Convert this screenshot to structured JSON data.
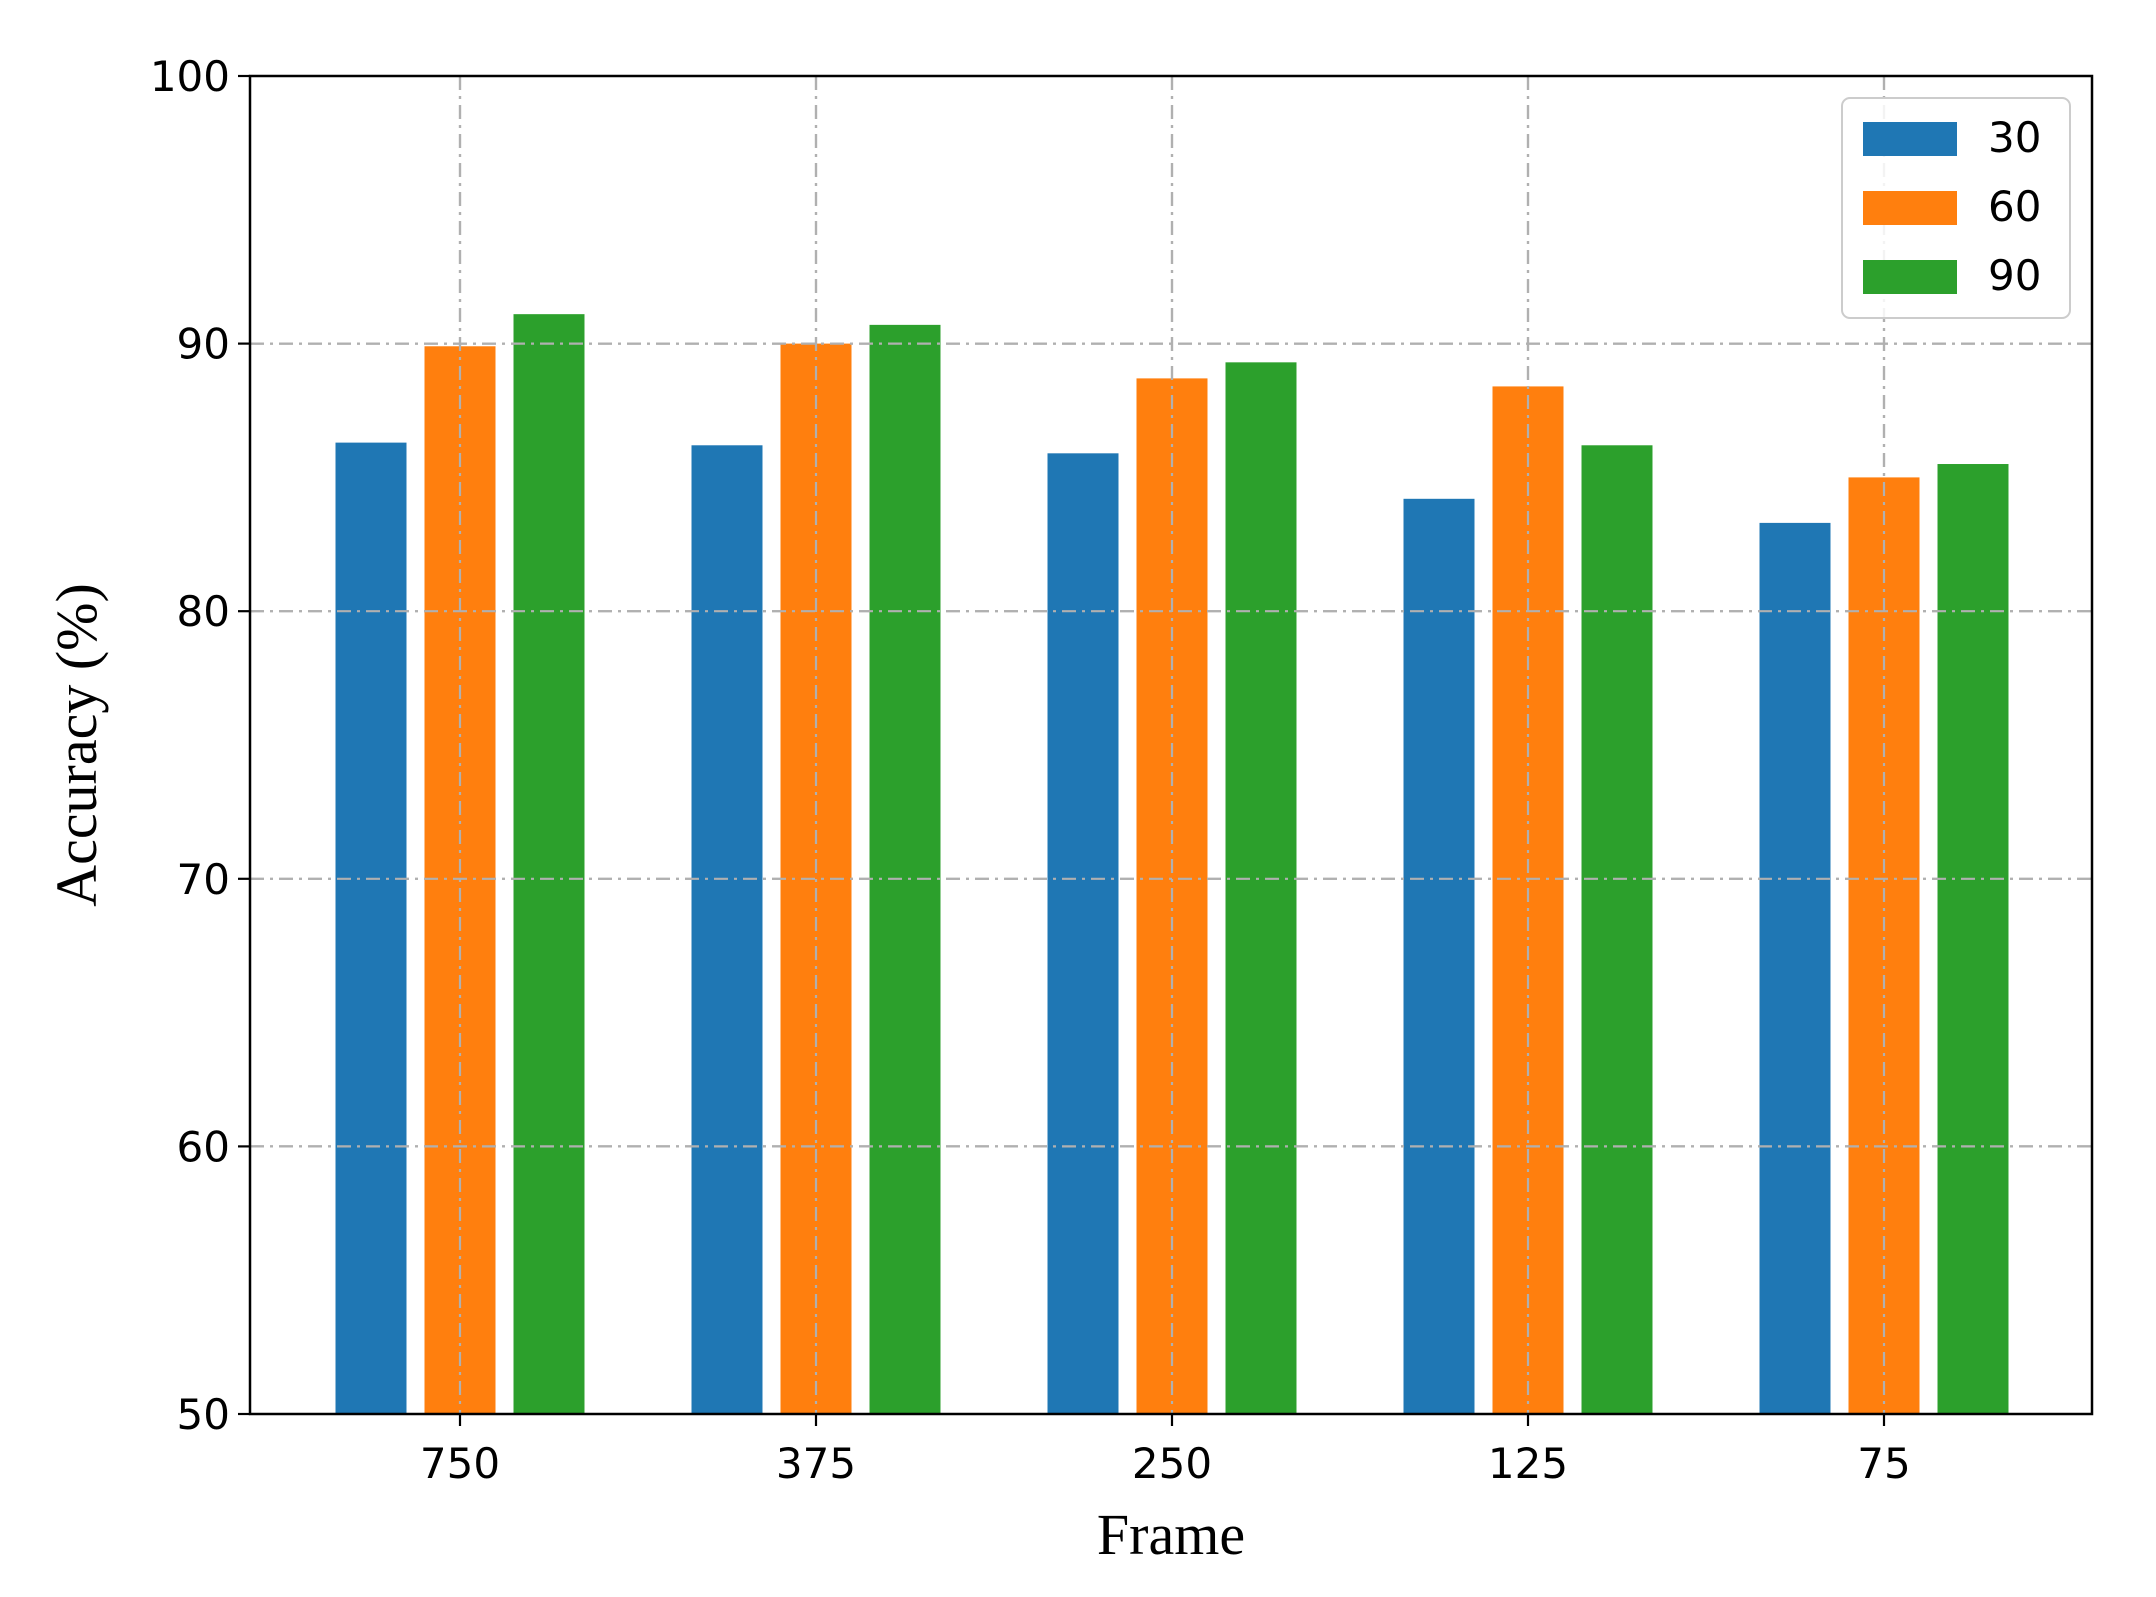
{
  "chart_data": {
    "type": "bar",
    "title": "",
    "xlabel": "Frame",
    "ylabel": "Accuracy (%)",
    "categories": [
      "750",
      "375",
      "250",
      "125",
      "75"
    ],
    "series": [
      {
        "name": "30",
        "color": "#1f77b4",
        "values": [
          86.3,
          86.2,
          85.9,
          84.2,
          83.3
        ]
      },
      {
        "name": "60",
        "color": "#ff7f0e",
        "values": [
          89.9,
          90.0,
          88.7,
          88.4,
          85.0
        ]
      },
      {
        "name": "90",
        "color": "#2ca02c",
        "values": [
          91.1,
          90.7,
          89.3,
          86.2,
          85.5
        ]
      }
    ],
    "ylim": [
      50,
      100
    ],
    "yticks": [
      "50",
      "60",
      "70",
      "80",
      "90",
      "100"
    ],
    "grid": true,
    "legend_position": "top-right"
  }
}
